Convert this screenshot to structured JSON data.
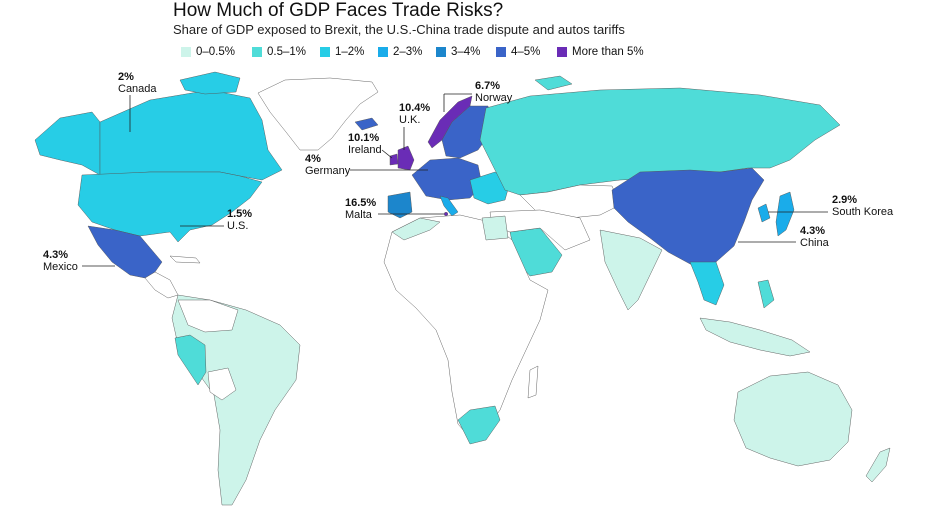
{
  "header": {
    "title": "How Much of GDP Faces Trade Risks?",
    "subtitle": "Share of GDP exposed to Brexit, the U.S.-China trade dispute and autos tariffs"
  },
  "legend": [
    {
      "label": "0–0.5%",
      "color": "#cdf4ea"
    },
    {
      "label": "0.5–1%",
      "color": "#4fdcd8"
    },
    {
      "label": "1–2%",
      "color": "#27cde6"
    },
    {
      "label": "2–3%",
      "color": "#1aacea"
    },
    {
      "label": "3–4%",
      "color": "#1c86cc"
    },
    {
      "label": "4–5%",
      "color": "#3a64c8"
    },
    {
      "label": "More than 5%",
      "color": "#6a2cb6"
    }
  ],
  "callouts": {
    "canada": {
      "value": "2%",
      "name": "Canada"
    },
    "us": {
      "value": "1.5%",
      "name": "U.S."
    },
    "mexico": {
      "value": "4.3%",
      "name": "Mexico"
    },
    "uk": {
      "value": "10.4%",
      "name": "U.K."
    },
    "ireland": {
      "value": "10.1%",
      "name": "Ireland"
    },
    "germany": {
      "value": "4%",
      "name": "Germany"
    },
    "malta": {
      "value": "16.5%",
      "name": "Malta"
    },
    "norway": {
      "value": "6.7%",
      "name": "Norway"
    },
    "skorea": {
      "value": "2.9%",
      "name": "South Korea"
    },
    "china": {
      "value": "4.3%",
      "name": "China"
    }
  },
  "colors": {
    "no_data": "#ffffff",
    "border": "#555555",
    "c0": "#cdf4ea",
    "c1": "#4fdcd8",
    "c2": "#27cde6",
    "c3": "#1aacea",
    "c4": "#1c86cc",
    "c5": "#3a64c8",
    "c6": "#6a2cb6"
  }
}
